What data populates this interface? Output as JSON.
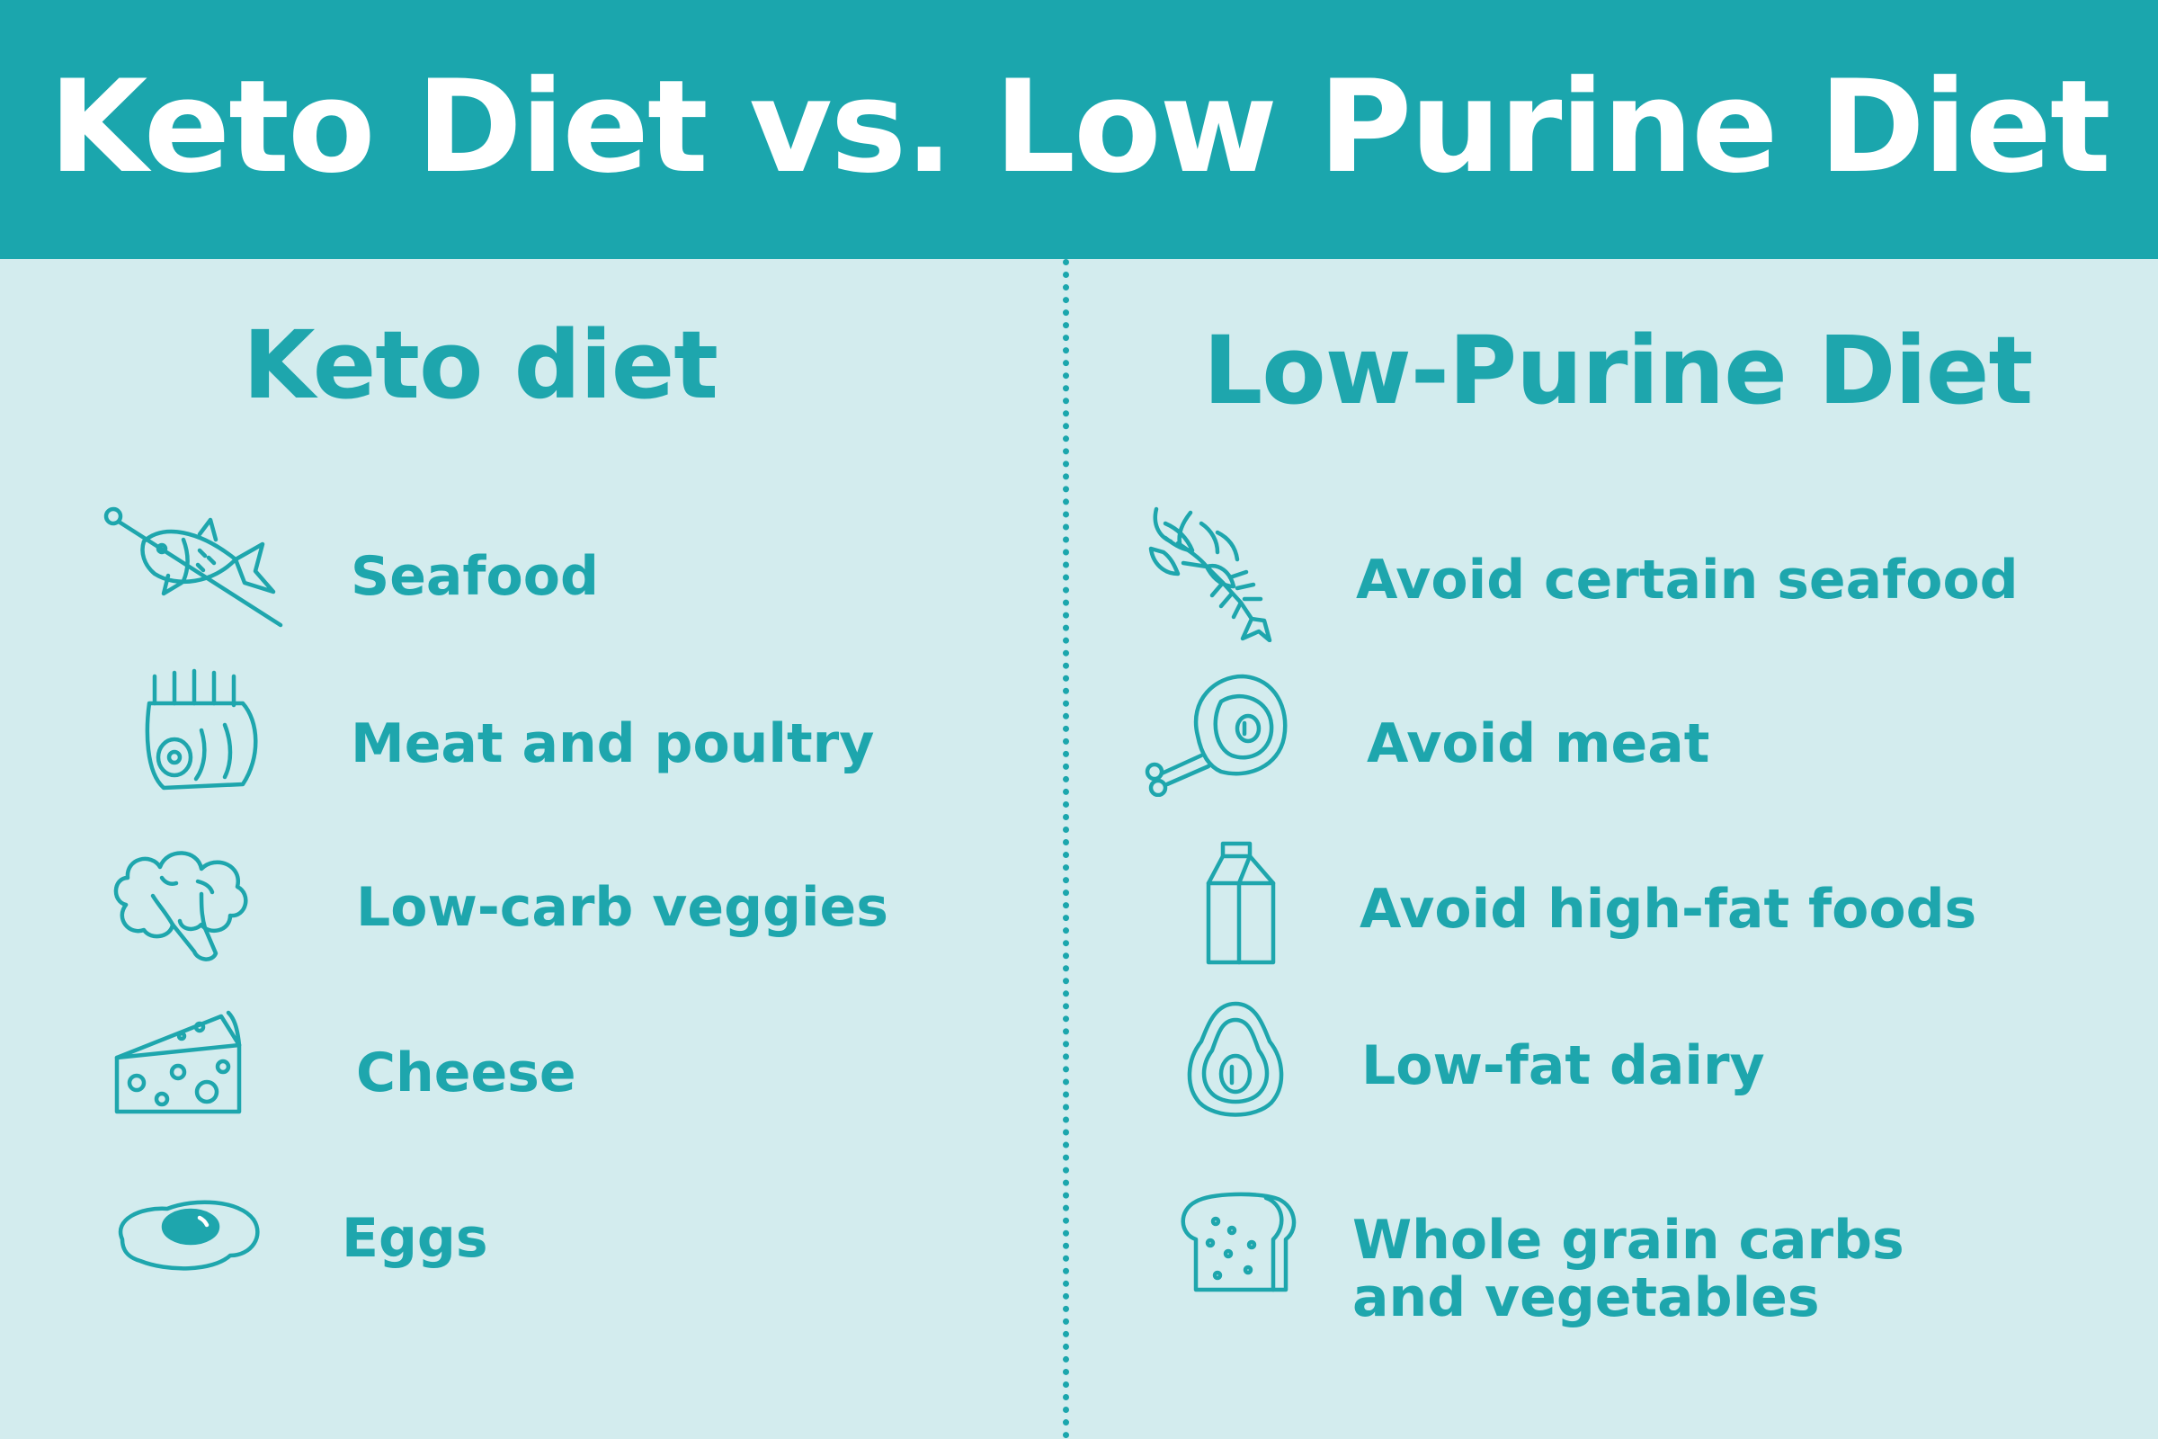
{
  "header": {
    "title": "Keto Diet vs. Low Purine Diet"
  },
  "colors": {
    "header_bg": "#1ba6ad",
    "page_bg": "#d3ecee",
    "accent_text": "#1ea6ad",
    "title_text": "#ffffff"
  },
  "keto": {
    "title": "Keto diet",
    "items": [
      {
        "label": "Seafood",
        "icon": "fish-skewer-icon"
      },
      {
        "label": "Meat and poultry",
        "icon": "rack-of-lamb-icon"
      },
      {
        "label": "Low-carb veggies",
        "icon": "broccoli-icon"
      },
      {
        "label": "Cheese",
        "icon": "cheese-wedge-icon"
      },
      {
        "label": "Eggs",
        "icon": "fried-egg-icon"
      }
    ]
  },
  "low_purine": {
    "title": "Low-Purine Diet",
    "items": [
      {
        "label": "Avoid certain seafood",
        "icon": "lobster-icon"
      },
      {
        "label": "Avoid meat",
        "icon": "ham-leg-icon"
      },
      {
        "label": "Avoid high-fat foods",
        "icon": "milk-carton-icon"
      },
      {
        "label": "Low-fat dairy",
        "icon": "avocado-icon"
      },
      {
        "label_line1": "Whole grain carbs",
        "label_line2": "and vegetables",
        "icon": "bread-loaf-icon"
      }
    ]
  }
}
